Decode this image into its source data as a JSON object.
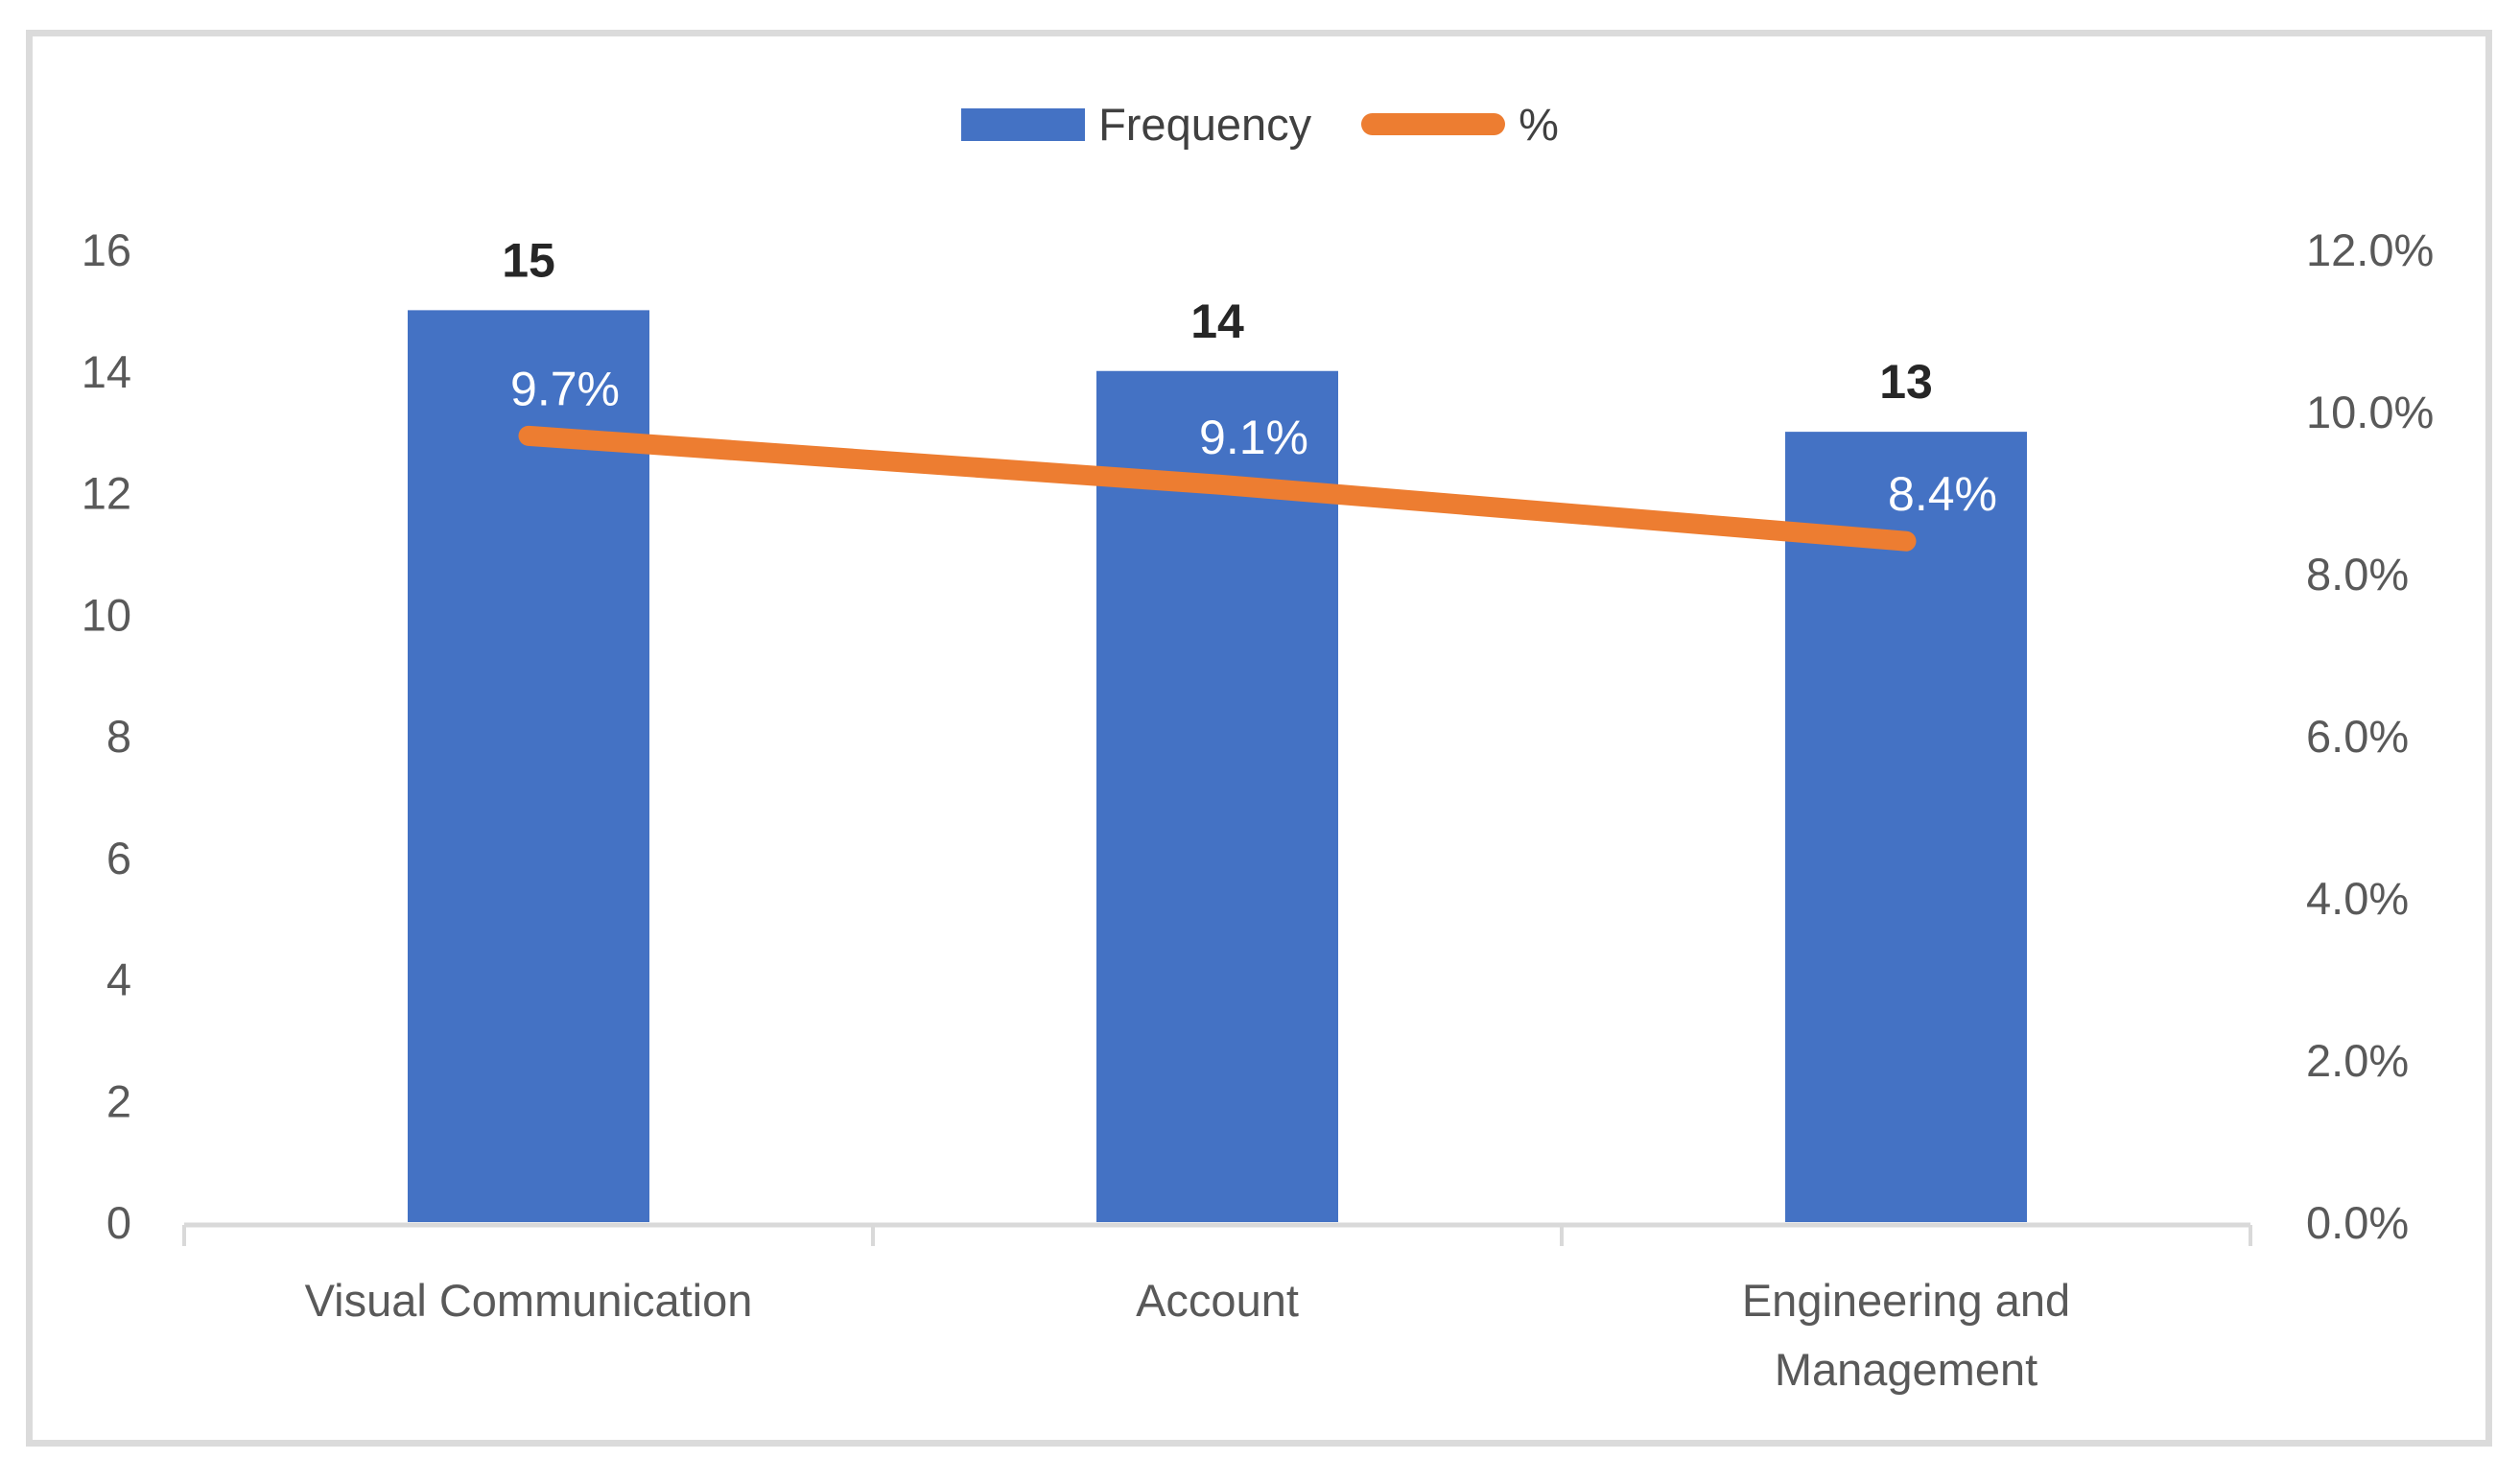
{
  "chart_data": {
    "type": "combo",
    "subtypes": [
      "bar",
      "line"
    ],
    "title": "",
    "categories": [
      "Visual Communication",
      "Account",
      "Engineering and Management"
    ],
    "category_tick_lines": [
      [
        "Visual Communication"
      ],
      [
        "Account"
      ],
      [
        "Engineering and",
        "Management"
      ]
    ],
    "series": [
      {
        "name": "Frequency",
        "type": "bar",
        "axis": "left",
        "values": [
          15,
          14,
          13
        ],
        "data_labels": [
          "15",
          "14",
          "13"
        ]
      },
      {
        "name": "%",
        "type": "line",
        "axis": "right",
        "values": [
          9.7,
          9.1,
          8.4
        ],
        "data_labels": [
          "9.7%",
          "9.1%",
          "8.4%"
        ]
      }
    ],
    "left_axis": {
      "min": 0,
      "max": 16,
      "step": 2,
      "ticks": [
        "0",
        "2",
        "4",
        "6",
        "8",
        "10",
        "12",
        "14",
        "16"
      ]
    },
    "right_axis": {
      "min": 0,
      "max": 12,
      "step": 2,
      "ticks": [
        "0.0%",
        "2.0%",
        "4.0%",
        "6.0%",
        "8.0%",
        "10.0%",
        "12.0%"
      ]
    },
    "grid": false,
    "legend_position": "top"
  },
  "legend": {
    "frequency_label": "Frequency",
    "percent_label": "%"
  },
  "colors": {
    "bar_blue": "#4472C4",
    "line_orange": "#ED7D31",
    "axis_text": "#595959",
    "category_text": "#595959",
    "bar_value_text": "#262626",
    "line_label_text": "#FFFFFF",
    "axis_line": "#D9D9D9",
    "frame_border": "#DBDBDB",
    "legend_text": "#404040",
    "background": "#FFFFFF"
  }
}
